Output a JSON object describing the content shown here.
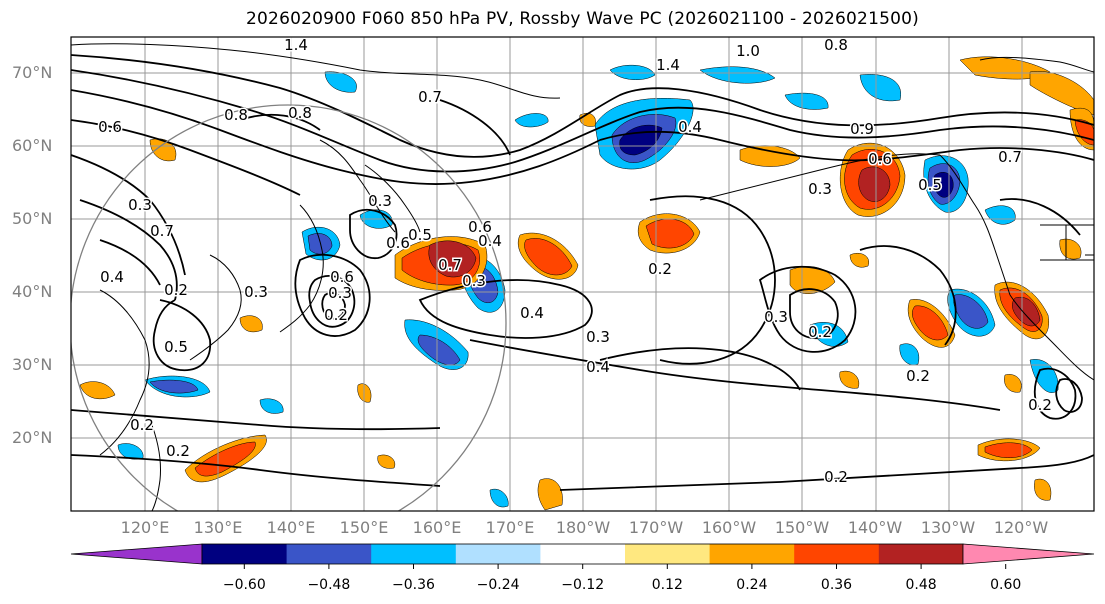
{
  "title": "2026020900 F060 850 hPa PV, Rossby Wave PC (2026021100 - 2026021500)",
  "lat_ticks": [
    "70°N",
    "60°N",
    "50°N",
    "40°N",
    "30°N",
    "20°N"
  ],
  "lon_ticks": [
    "120°E",
    "130°E",
    "140°E",
    "150°E",
    "160°E",
    "170°E",
    "180°W",
    "170°W",
    "160°W",
    "150°W",
    "140°W",
    "130°W",
    "120°W"
  ],
  "colorbar": {
    "colors": [
      "#9933cc",
      "#000080",
      "#3a55c8",
      "#00bfff",
      "#b0e0ff",
      "#ffffff",
      "#ffe880",
      "#ffa500",
      "#ff4500",
      "#b22222",
      "#ff88b0"
    ],
    "tick_labels": [
      "−0.60",
      "−0.48",
      "−0.36",
      "−0.24",
      "−0.12",
      "0.12",
      "0.24",
      "0.36",
      "0.48",
      "0.60"
    ]
  },
  "contour_labels": [
    "1.4",
    "1.0",
    "0.8",
    "1.4",
    "0.7",
    "0.8",
    "0.4",
    "0.6",
    "0.9",
    "0.8",
    "0.7",
    "0.6",
    "0.3",
    "0.3",
    "0.6",
    "0.5",
    "0.4",
    "0.6",
    "0.5",
    "0.7",
    "0.3",
    "0.2",
    "0.3",
    "0.3",
    "0.4",
    "0.2",
    "0.3",
    "0.2",
    "0.2",
    "0.2",
    "0.2",
    "0.2",
    "0.2",
    "0.3",
    "0.4",
    "0.2",
    "0.5",
    "0.4",
    "0.3",
    "0.6",
    "0.7"
  ]
}
